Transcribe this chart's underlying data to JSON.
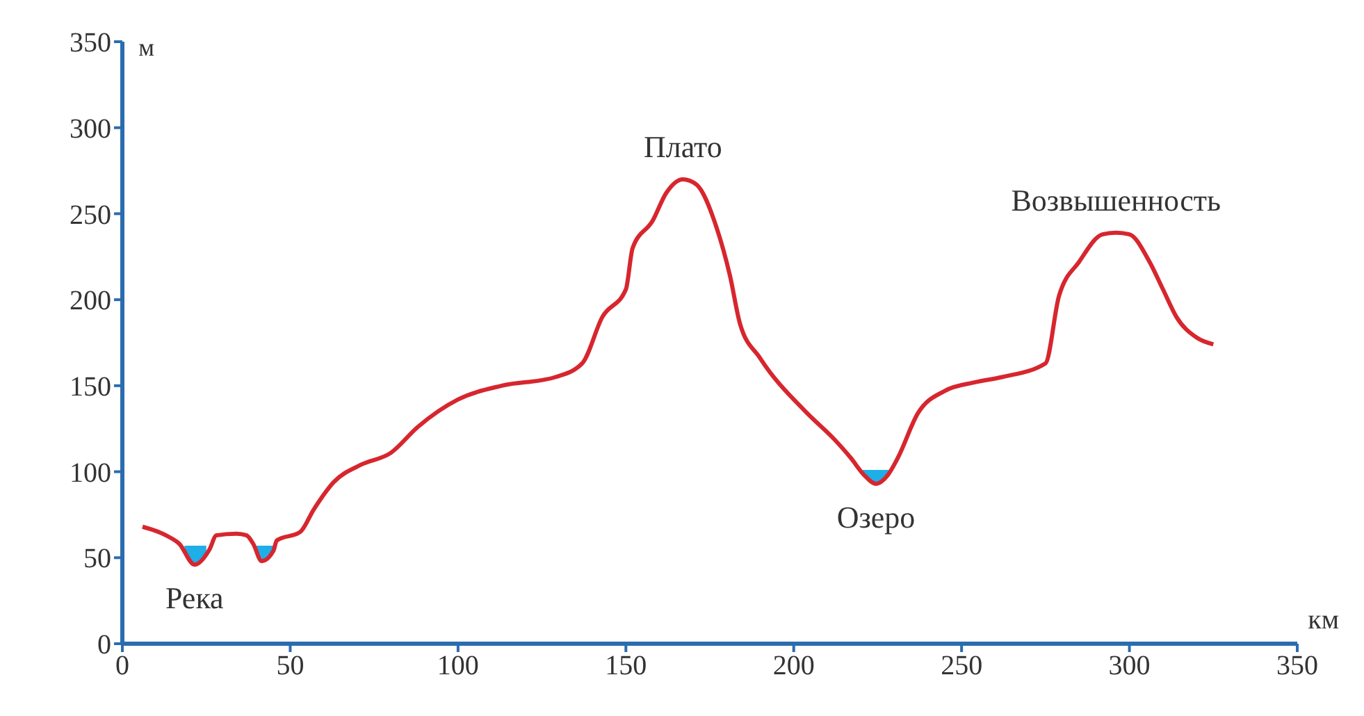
{
  "chart_data": {
    "type": "line",
    "xlabel": "км",
    "ylabel": "м",
    "xlim": [
      0,
      350
    ],
    "xticks": [
      0,
      50,
      100,
      150,
      200,
      250,
      300,
      350
    ],
    "ylim": [
      0,
      350
    ],
    "yticks": [
      0,
      50,
      100,
      150,
      200,
      250,
      300,
      350
    ],
    "marker": "none",
    "line_style": "solid",
    "series": [
      {
        "color": "#d7262e",
        "x": [
          6,
          13,
          17,
          21.5,
          26,
          28,
          34,
          37,
          39,
          41.5,
          45,
          46,
          53,
          57,
          63,
          71,
          80,
          88,
          100,
          113,
          129,
          137,
          143,
          150,
          152,
          158,
          162,
          167,
          171,
          177,
          181,
          184,
          190,
          204,
          212,
          217,
          221,
          224.5,
          228,
          231,
          237,
          245,
          254,
          262,
          275,
          279,
          285,
          292,
          296,
          300,
          306,
          310,
          314,
          320,
          325
        ],
        "values": [
          68,
          63,
          58,
          46,
          55,
          63,
          64,
          63,
          58,
          48,
          54,
          60,
          65,
          78,
          94,
          104,
          111,
          126,
          142,
          150,
          155,
          163,
          190,
          206,
          230,
          246,
          262,
          270,
          267,
          242,
          214,
          186,
          166,
          134,
          119,
          108,
          98,
          93,
          98,
          108,
          134,
          147,
          152,
          155,
          163,
          202,
          222,
          238,
          239,
          238,
          222,
          206,
          190,
          178,
          174
        ]
      },
      {
        "type": "area",
        "color": "#1eaee8",
        "x": [
          18.5,
          25
        ],
        "values": [
          57,
          57
        ]
      },
      {
        "type": "area",
        "color": "#1eaee8",
        "x": [
          40,
          45
        ],
        "values": [
          57,
          57
        ]
      },
      {
        "type": "area",
        "color": "#1eaee8",
        "x": [
          220.5,
          228.3
        ],
        "values": [
          101,
          101
        ]
      }
    ],
    "annotations": [
      {
        "text": "Река",
        "x": 21.5,
        "y": 46
      },
      {
        "text": "Плато",
        "x": 167,
        "y": 270
      },
      {
        "text": "Озеро",
        "x": 224.5,
        "y": 93
      },
      {
        "text": "Возвышенность",
        "x": 296,
        "y": 239
      }
    ]
  }
}
